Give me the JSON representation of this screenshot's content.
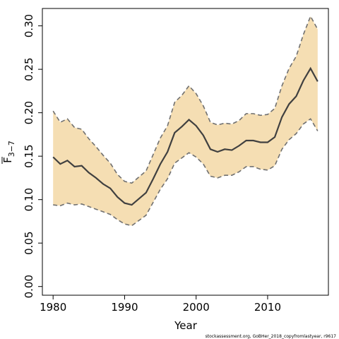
{
  "chart_data": {
    "type": "area",
    "xlabel": "Year",
    "ylabel_main": "F",
    "ylabel_sub": "3−7",
    "footnote": "stockassessment.org, GoBHer_2018_copyfromlastyear, r9617",
    "xlim": [
      1978.5,
      2018.5
    ],
    "ylim": [
      -0.01,
      0.32
    ],
    "x_ticks": [
      1980,
      1990,
      2000,
      2010
    ],
    "x_tick_labels": [
      "1980",
      "1990",
      "2000",
      "2010"
    ],
    "y_ticks": [
      0.0,
      0.05,
      0.1,
      0.15,
      0.2,
      0.25,
      0.3
    ],
    "y_tick_labels": [
      "0.00",
      "0.05",
      "0.10",
      "0.15",
      "0.20",
      "0.25",
      "0.30"
    ],
    "grid": false,
    "colors": {
      "band": "#f5deb3",
      "bound_line": "#707070",
      "estimate_line": "#404040"
    },
    "years": [
      1980,
      1981,
      1982,
      1983,
      1984,
      1985,
      1986,
      1987,
      1988,
      1989,
      1990,
      1991,
      1992,
      1993,
      1994,
      1995,
      1996,
      1997,
      1998,
      1999,
      2000,
      2001,
      2002,
      2003,
      2004,
      2005,
      2006,
      2007,
      2008,
      2009,
      2010,
      2011,
      2012,
      2013,
      2014,
      2015,
      2016,
      2017
    ],
    "estimate": [
      0.149,
      0.141,
      0.145,
      0.138,
      0.139,
      0.131,
      0.125,
      0.118,
      0.113,
      0.103,
      0.096,
      0.094,
      0.101,
      0.108,
      0.124,
      0.141,
      0.155,
      0.177,
      0.184,
      0.192,
      0.185,
      0.174,
      0.158,
      0.155,
      0.158,
      0.157,
      0.162,
      0.168,
      0.168,
      0.166,
      0.166,
      0.172,
      0.195,
      0.21,
      0.219,
      0.237,
      0.251,
      0.236
    ],
    "upper": [
      0.202,
      0.189,
      0.193,
      0.183,
      0.181,
      0.17,
      0.161,
      0.151,
      0.142,
      0.129,
      0.121,
      0.119,
      0.126,
      0.133,
      0.152,
      0.171,
      0.185,
      0.212,
      0.22,
      0.231,
      0.222,
      0.208,
      0.189,
      0.186,
      0.188,
      0.187,
      0.191,
      0.199,
      0.199,
      0.197,
      0.198,
      0.205,
      0.231,
      0.251,
      0.265,
      0.29,
      0.311,
      0.296
    ],
    "lower": [
      0.094,
      0.093,
      0.096,
      0.094,
      0.095,
      0.092,
      0.089,
      0.086,
      0.083,
      0.077,
      0.072,
      0.07,
      0.076,
      0.082,
      0.097,
      0.112,
      0.124,
      0.142,
      0.148,
      0.154,
      0.149,
      0.141,
      0.127,
      0.125,
      0.128,
      0.128,
      0.132,
      0.138,
      0.138,
      0.135,
      0.134,
      0.139,
      0.158,
      0.169,
      0.176,
      0.187,
      0.193,
      0.179
    ]
  }
}
